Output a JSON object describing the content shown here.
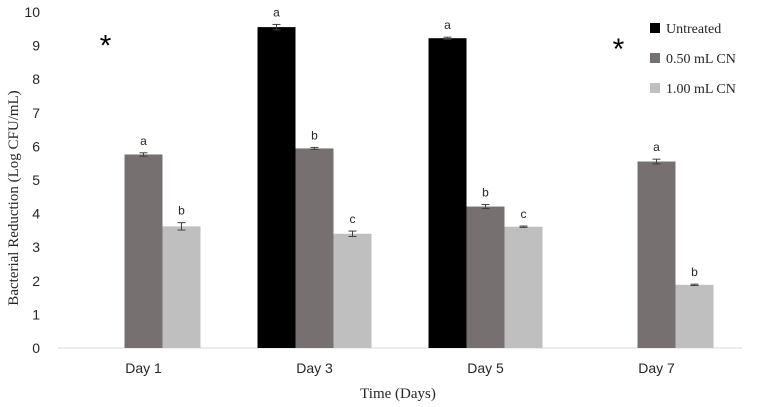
{
  "chart_data": {
    "type": "bar",
    "xlabel": "Time (Days)",
    "ylabel": "Bacterial Reduction (Log CFU/mL)",
    "ylim": [
      0,
      10
    ],
    "yticks": [
      "0",
      "1",
      "2",
      "3",
      "4",
      "5",
      "6",
      "7",
      "8",
      "9",
      "10"
    ],
    "categories": [
      "Day 1",
      "Day 3",
      "Day 5",
      "Day 7"
    ],
    "legend_position": "top-right",
    "grid": false,
    "series": [
      {
        "name": "Untreated",
        "color": "#000000",
        "values": [
          null,
          9.55,
          9.22,
          null
        ],
        "errors": [
          null,
          0.08,
          0.03,
          null
        ],
        "labels": [
          null,
          "a",
          "a",
          null
        ]
      },
      {
        "name": "0.50 mL CN",
        "color": "#767070",
        "values": [
          5.76,
          5.94,
          4.21,
          5.55
        ],
        "errors": [
          0.05,
          0.03,
          0.06,
          0.07
        ],
        "labels": [
          "a",
          "b",
          "b",
          "a"
        ]
      },
      {
        "name": "1.00 mL CN",
        "color": "#bfbfbf",
        "values": [
          3.62,
          3.4,
          3.61,
          1.88
        ],
        "errors": [
          0.11,
          0.08,
          0.02,
          0.02
        ],
        "labels": [
          "b",
          "c",
          "c",
          "b"
        ]
      }
    ],
    "annotations": [
      {
        "text": "*",
        "category": "Day 1",
        "y": 9.3
      },
      {
        "text": "*",
        "category": "Day 7",
        "y": 9.2
      }
    ]
  }
}
